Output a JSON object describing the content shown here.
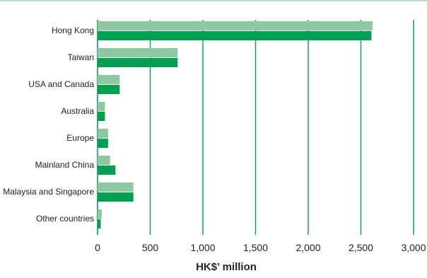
{
  "chart_data": {
    "type": "bar",
    "orientation": "horizontal",
    "categories": [
      "Hong Kong",
      "Taiwan",
      "USA and Canada",
      "Australia",
      "Europe",
      "Mainland China",
      "Malaysia and Singapore",
      "Other countries"
    ],
    "series": [
      {
        "values": [
          2610,
          760,
          210,
          70,
          100,
          120,
          340,
          40
        ]
      },
      {
        "values": [
          2600,
          760,
          210,
          70,
          100,
          170,
          340,
          30
        ]
      }
    ],
    "colors": {
      "series_1": "#8cc9a1",
      "series_2": "#00a050",
      "grid": "#00a050",
      "top_rule": "#b9dcc8"
    },
    "xlim": [
      0,
      3000
    ],
    "xticks": [
      0,
      500,
      1000,
      1500,
      2000,
      2500,
      3000
    ],
    "xtick_labels": [
      "0",
      "500",
      "1,000",
      "1,500",
      "2,000",
      "2,500",
      "3,000"
    ],
    "xlabel": "HK$’ million",
    "grid": true,
    "legend": "none"
  }
}
